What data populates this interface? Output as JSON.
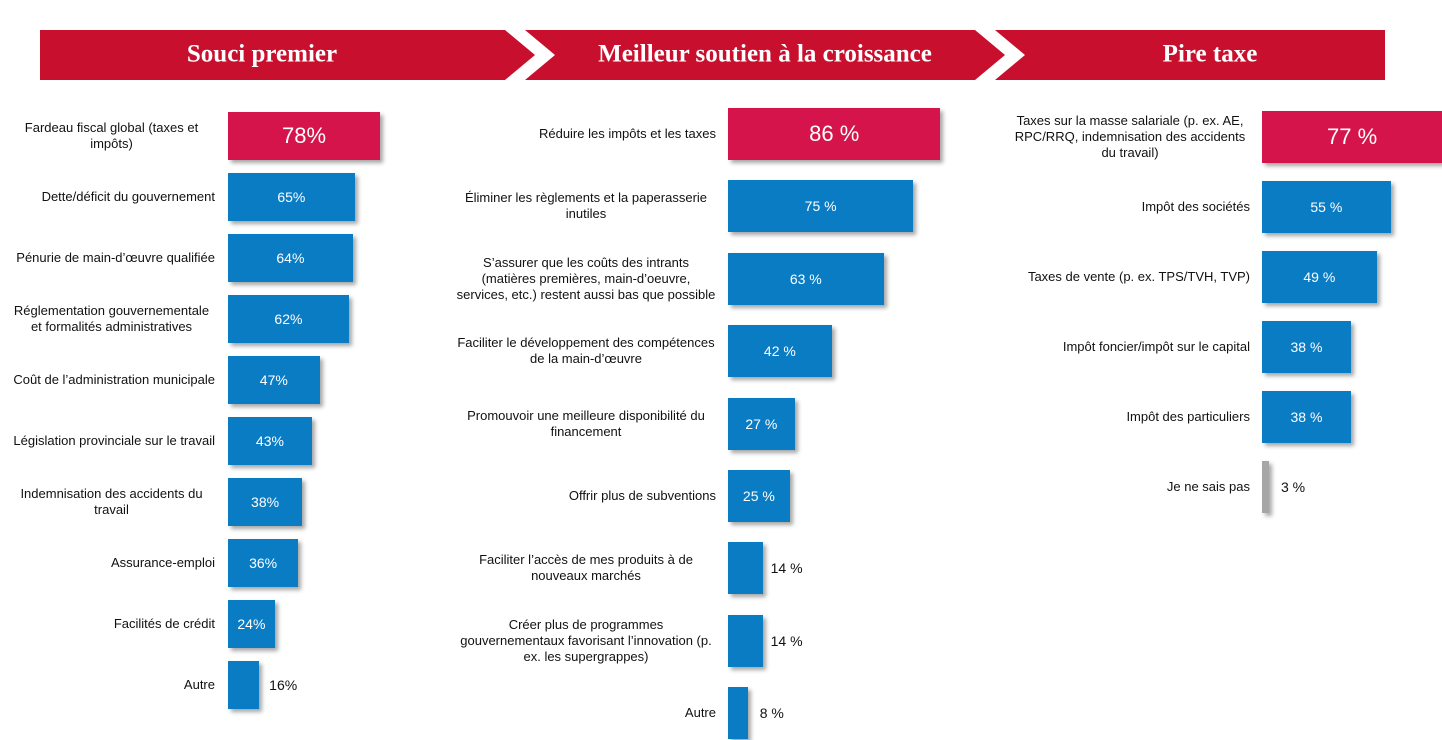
{
  "chart_data": [
    {
      "type": "bar",
      "orientation": "horizontal",
      "title": "Souci premier",
      "categories": [
        "Fardeau fiscal global (taxes et impôts)",
        "Dette/déficit du gouvernement",
        "Pénurie de main-d’œuvre qualifiée",
        "Réglementation gouvernementale et formalités administratives",
        "Coût de l’administration municipale",
        "Législation provinciale sur le travail",
        "Indemnisation des accidents du travail",
        "Assurance-emploi",
        "Facilités de crédit",
        "Autre"
      ],
      "values": [
        78,
        65,
        64,
        62,
        47,
        43,
        38,
        36,
        24,
        16
      ],
      "value_labels": [
        "78%",
        "65%",
        "64%",
        "62%",
        "47%",
        "43%",
        "38%",
        "36%",
        "24%",
        "16%"
      ],
      "colors": [
        "#d4144a",
        "#0a7cc4",
        "#0a7cc4",
        "#0a7cc4",
        "#0a7cc4",
        "#0a7cc4",
        "#0a7cc4",
        "#0a7cc4",
        "#0a7cc4",
        "#0a7cc4"
      ],
      "xlim": [
        0,
        100
      ]
    },
    {
      "type": "bar",
      "orientation": "horizontal",
      "title": "Meilleur soutien à la croissance",
      "categories": [
        "Réduire les impôts et les taxes",
        "Éliminer les règlements et la paperasserie inutiles",
        "S’assurer que les coûts des intrants (matières premières, main-d’oeuvre, services, etc.) restent aussi bas que possible",
        "Faciliter le développement des compétences de la main-d’œuvre",
        "Promouvoir une meilleure disponibilité du financement",
        "Offrir plus de subventions",
        "Faciliter l’accès de mes produits à de nouveaux marchés",
        "Créer plus de programmes gouvernementaux favorisant l’innovation (p. ex. les supergrappes)",
        "Autre"
      ],
      "values": [
        86,
        75,
        63,
        42,
        27,
        25,
        14,
        14,
        8
      ],
      "value_labels": [
        "86 %",
        "75 %",
        "63 %",
        "42 %",
        "27 %",
        "25 %",
        "14 %",
        "14 %",
        "8 %"
      ],
      "colors": [
        "#d4144a",
        "#0a7cc4",
        "#0a7cc4",
        "#0a7cc4",
        "#0a7cc4",
        "#0a7cc4",
        "#0a7cc4",
        "#0a7cc4",
        "#0a7cc4"
      ],
      "xlim": [
        0,
        100
      ]
    },
    {
      "type": "bar",
      "orientation": "horizontal",
      "title": "Pire taxe",
      "categories": [
        "Taxes sur la masse salariale (p. ex. AE, RPC/RRQ, indemnisation des accidents du travail)",
        "Impôt des sociétés",
        "Taxes de vente (p. ex. TPS/TVH, TVP)",
        "Impôt foncier/impôt sur le capital",
        "Impôt des particuliers",
        "Je ne sais pas"
      ],
      "values": [
        77,
        55,
        49,
        38,
        38,
        3
      ],
      "value_labels": [
        "77 %",
        "55 %",
        "49 %",
        "38 %",
        "38 %",
        "3 %"
      ],
      "colors": [
        "#d4144a",
        "#0a7cc4",
        "#0a7cc4",
        "#0a7cc4",
        "#0a7cc4",
        "#a6a6a6"
      ],
      "xlim": [
        0,
        100
      ]
    }
  ]
}
